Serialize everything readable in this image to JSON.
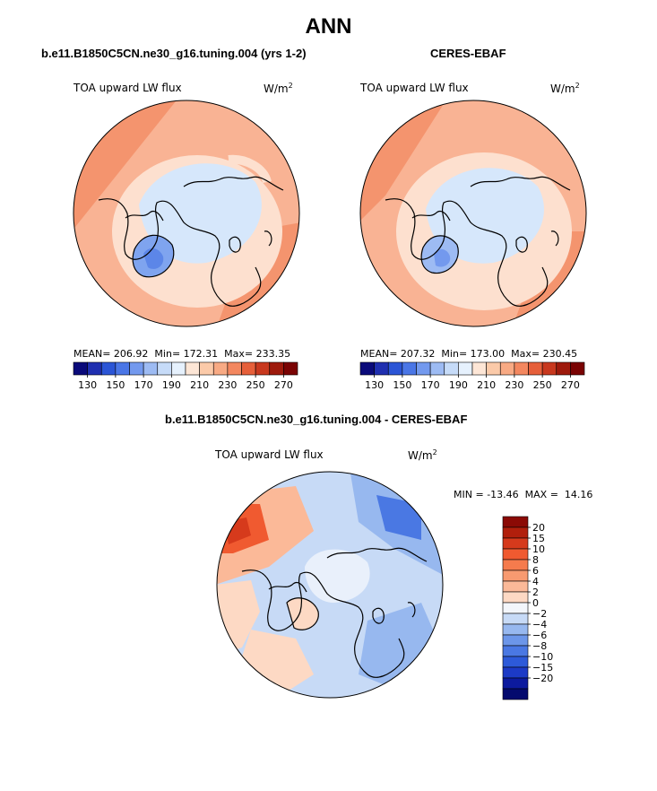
{
  "figure_title": "ANN",
  "panels": [
    {
      "title": "b.e11.B1850C5CN.ne30_g16.tuning.004 (yrs 1-2)",
      "variable": "TOA upward LW flux",
      "units_base": "W/m",
      "units_exp": "2",
      "stats": {
        "mean_label": "MEAN=",
        "mean": "206.92",
        "min_label": "Min=",
        "min": "172.31",
        "max_label": "Max=",
        "max": "233.35"
      }
    },
    {
      "title": "CERES-EBAF",
      "variable": "TOA upward LW flux",
      "units_base": "W/m",
      "units_exp": "2",
      "stats": {
        "mean_label": "MEAN=",
        "mean": "207.32",
        "min_label": "Min=",
        "min": "173.00",
        "max_label": "Max=",
        "max": "230.45"
      }
    },
    {
      "title": "b.e11.B1850C5CN.ne30_g16.tuning.004 - CERES-EBAF",
      "variable": "TOA upward LW flux",
      "units_base": "W/m",
      "units_exp": "2",
      "stats": {
        "min_label": "MIN =",
        "min": "-13.46",
        "max_label": "MAX =",
        "max": "14.16"
      }
    }
  ],
  "chart_data": [
    {
      "type": "heatmap",
      "projection": "polar-stereographic (north pole)",
      "title": "b.e11.B1850C5CN.ne30_g16.tuning.004 (yrs 1-2)",
      "variable": "TOA upward LW flux",
      "units": "W/m2",
      "colorbar": {
        "orientation": "horizontal",
        "levels": [
          130,
          140,
          150,
          160,
          170,
          180,
          190,
          200,
          210,
          220,
          230,
          240,
          250,
          260,
          270
        ],
        "tick_labels": [
          "130",
          "150",
          "170",
          "190",
          "210",
          "230",
          "250",
          "270"
        ],
        "colors": [
          "#0a0a7a",
          "#1f2fb0",
          "#2b55d6",
          "#4a76e6",
          "#7399ee",
          "#9dbbf3",
          "#c6dbf8",
          "#e6f1fd",
          "#fde6d6",
          "#fbcaa9",
          "#f8aa84",
          "#f3875f",
          "#e65f3a",
          "#c8381e",
          "#9e1a0c",
          "#7a0303"
        ]
      },
      "stats": {
        "mean": 206.92,
        "min": 172.31,
        "max": 233.35
      }
    },
    {
      "type": "heatmap",
      "projection": "polar-stereographic (north pole)",
      "title": "CERES-EBAF",
      "variable": "TOA upward LW flux",
      "units": "W/m2",
      "colorbar": {
        "orientation": "horizontal",
        "levels": [
          130,
          140,
          150,
          160,
          170,
          180,
          190,
          200,
          210,
          220,
          230,
          240,
          250,
          260,
          270
        ],
        "tick_labels": [
          "130",
          "150",
          "170",
          "190",
          "210",
          "230",
          "250",
          "270"
        ],
        "colors": [
          "#0a0a7a",
          "#1f2fb0",
          "#2b55d6",
          "#4a76e6",
          "#7399ee",
          "#9dbbf3",
          "#c6dbf8",
          "#e6f1fd",
          "#fde6d6",
          "#fbcaa9",
          "#f8aa84",
          "#f3875f",
          "#e65f3a",
          "#c8381e",
          "#9e1a0c",
          "#7a0303"
        ]
      },
      "stats": {
        "mean": 207.32,
        "min": 173.0,
        "max": 230.45
      }
    },
    {
      "type": "heatmap",
      "projection": "polar-stereographic (north pole)",
      "title": "b.e11.B1850C5CN.ne30_g16.tuning.004 - CERES-EBAF",
      "variable": "TOA upward LW flux",
      "units": "W/m2",
      "colorbar": {
        "orientation": "vertical",
        "levels": [
          -20,
          -15,
          -10,
          -8,
          -6,
          -4,
          -2,
          0,
          2,
          4,
          6,
          8,
          10,
          15,
          20
        ],
        "tick_labels": [
          "20",
          "15",
          "10",
          "8",
          "6",
          "4",
          "2",
          "0",
          "−2",
          "−4",
          "−6",
          "−8",
          "−10",
          "−15",
          "−20"
        ],
        "colors_top_to_bottom": [
          "#8b0a05",
          "#b11f0c",
          "#d63a1c",
          "#f05a30",
          "#f57b4d",
          "#f89a70",
          "#fbb998",
          "#fdd9c4",
          "#f3f6fb",
          "#c7daf6",
          "#97b8ef",
          "#6c96e9",
          "#4a78e3",
          "#2d5ad9",
          "#1c3ac6",
          "#0c1a9e",
          "#040a6e"
        ]
      },
      "stats": {
        "min": -13.46,
        "max": 14.16
      }
    }
  ]
}
